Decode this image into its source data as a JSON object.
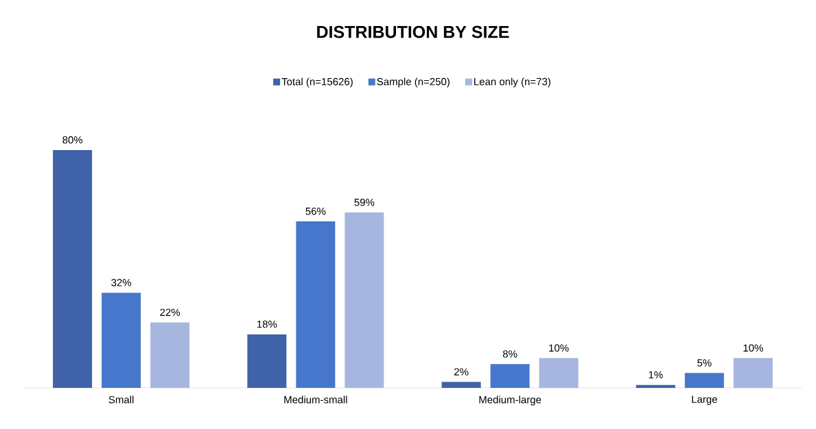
{
  "chart_data": {
    "type": "bar",
    "title": "DISTRIBUTION BY SIZE",
    "categories": [
      "Small",
      "Medium-small",
      "Medium-large",
      "Large"
    ],
    "series": [
      {
        "name": "Total (n=15626)",
        "color": "#3f62a8",
        "values": [
          80,
          18,
          2,
          1
        ],
        "value_labels": [
          "80%",
          "18%",
          "2%",
          "1%"
        ]
      },
      {
        "name": "Sample (n=250)",
        "color": "#4677cc",
        "values": [
          32,
          56,
          8,
          5
        ],
        "value_labels": [
          "32%",
          "56%",
          "8%",
          "5%"
        ]
      },
      {
        "name": "Lean only (n=73)",
        "color": "#a7b6df",
        "values": [
          22,
          59,
          10,
          10
        ],
        "value_labels": [
          "22%",
          "59%",
          "10%",
          "10%"
        ]
      }
    ],
    "legend": "top",
    "grid": false
  }
}
